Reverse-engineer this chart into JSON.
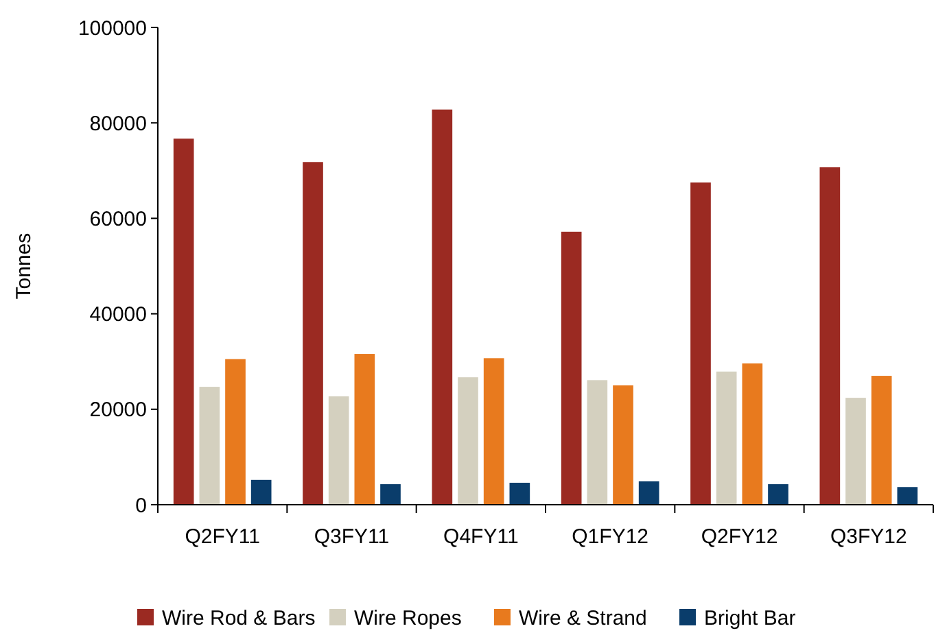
{
  "chart_data": {
    "type": "bar",
    "ylabel": "Tonnes",
    "categories": [
      "Q2FY11",
      "Q3FY11",
      "Q4FY11",
      "Q1FY12",
      "Q2FY12",
      "Q3FY12"
    ],
    "ylim": [
      0,
      100000
    ],
    "yticks": [
      0,
      20000,
      40000,
      60000,
      80000,
      100000
    ],
    "grid": false,
    "legend": "bottom",
    "series": [
      {
        "name": "Wire Rod & Bars",
        "color": "#9b2a22",
        "values": [
          76700,
          71800,
          82800,
          57200,
          67500,
          70700
        ]
      },
      {
        "name": "Wire Ropes",
        "color": "#d4d0bf",
        "values": [
          24700,
          22700,
          26700,
          26100,
          27900,
          22400
        ]
      },
      {
        "name": "Wire & Strand",
        "color": "#e87a1e",
        "values": [
          30500,
          31600,
          30700,
          25000,
          29600,
          27000
        ]
      },
      {
        "name": "Bright Bar",
        "color": "#0a3d6b",
        "values": [
          5200,
          4300,
          4600,
          4900,
          4300,
          3700
        ]
      }
    ]
  }
}
